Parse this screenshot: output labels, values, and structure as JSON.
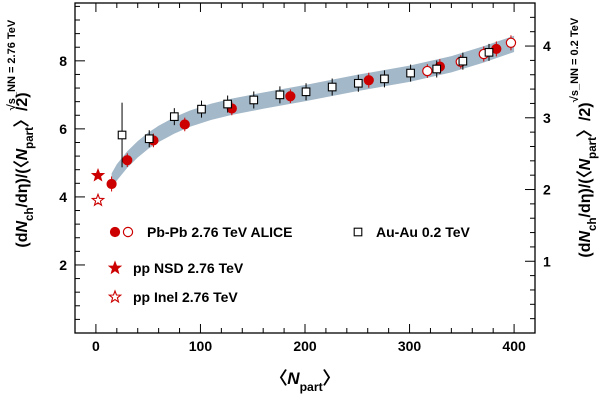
{
  "chart_data": {
    "type": "scatter",
    "xlabel_parts": [
      "〈",
      "N",
      "part",
      "〉"
    ],
    "ylabel_left_parts": [
      "(d",
      "N",
      "ch",
      "/dη)/(〈",
      "N",
      "part",
      "〉/2)"
    ],
    "ylabel_right_parts": [
      "(d",
      "N",
      "ch",
      "/dη)/(〈",
      "N",
      "part",
      "〉/2)"
    ],
    "label_right_energy": "√s_NN = 0.2 TeV",
    "label_left_energy": "√s_NN = 2.76 TeV",
    "xlim": [
      -20,
      420
    ],
    "ylim_left": [
      0,
      9.7
    ],
    "ylim_right": [
      0,
      4.6
    ],
    "x_ticks": [
      0,
      100,
      200,
      300,
      400
    ],
    "y_ticks_left": [
      2,
      4,
      6,
      8
    ],
    "y_ticks_right": [
      1,
      2,
      3,
      4
    ],
    "colors": {
      "alice": "#cc0000",
      "band": "#a3b8c8",
      "rhic": "#000000",
      "energy_label_left": "#cc0000"
    },
    "series": [
      {
        "name": "Pb-Pb 2.76 TeV ALICE",
        "marker": "filled-circle",
        "points": [
          {
            "x": 15,
            "y": 4.38,
            "e": 0.22
          },
          {
            "x": 30,
            "y": 5.08,
            "e": 0.2
          },
          {
            "x": 55,
            "y": 5.66,
            "e": 0.2
          },
          {
            "x": 85,
            "y": 6.13,
            "e": 0.2
          },
          {
            "x": 130,
            "y": 6.6,
            "e": 0.2
          },
          {
            "x": 186,
            "y": 6.96,
            "e": 0.2
          },
          {
            "x": 261,
            "y": 7.43,
            "e": 0.22
          },
          {
            "x": 329,
            "y": 7.83,
            "e": 0.22
          },
          {
            "x": 383,
            "y": 8.35,
            "e": 0.22
          }
        ]
      },
      {
        "name": "Pb-Pb 2.76 TeV ALICE (open)",
        "marker": "open-circle",
        "points": [
          {
            "x": 317,
            "y": 7.7,
            "e": 0.2
          },
          {
            "x": 349,
            "y": 7.97,
            "e": 0.2
          },
          {
            "x": 371,
            "y": 8.2,
            "e": 0.22
          },
          {
            "x": 397,
            "y": 8.53,
            "e": 0.22
          }
        ]
      },
      {
        "name": "Au-Au 0.2 TeV",
        "marker": "open-square",
        "points": [
          {
            "x": 25,
            "y": 5.82,
            "e": 0.95
          },
          {
            "x": 51,
            "y": 5.71,
            "e": 0.25
          },
          {
            "x": 75,
            "y": 6.36,
            "e": 0.25
          },
          {
            "x": 101,
            "y": 6.58,
            "e": 0.25
          },
          {
            "x": 126,
            "y": 6.73,
            "e": 0.25
          },
          {
            "x": 151,
            "y": 6.85,
            "e": 0.25
          },
          {
            "x": 176,
            "y": 7.0,
            "e": 0.25
          },
          {
            "x": 201,
            "y": 7.09,
            "e": 0.25
          },
          {
            "x": 226,
            "y": 7.23,
            "e": 0.25
          },
          {
            "x": 251,
            "y": 7.34,
            "e": 0.25
          },
          {
            "x": 276,
            "y": 7.47,
            "e": 0.25
          },
          {
            "x": 301,
            "y": 7.64,
            "e": 0.25
          },
          {
            "x": 326,
            "y": 7.76,
            "e": 0.25
          },
          {
            "x": 351,
            "y": 7.99,
            "e": 0.25
          },
          {
            "x": 376,
            "y": 8.25,
            "e": 0.25
          }
        ]
      },
      {
        "name": "pp NSD 2.76 TeV",
        "marker": "filled-star",
        "points": [
          {
            "x": 2,
            "y": 4.63
          }
        ]
      },
      {
        "name": "pp Inel 2.76 TeV",
        "marker": "open-star",
        "points": [
          {
            "x": 2,
            "y": 3.9,
            "e": 0.12
          }
        ]
      }
    ],
    "band": {
      "x": [
        15,
        20,
        30,
        40,
        50,
        60,
        75,
        90,
        110,
        130,
        160,
        200,
        250,
        300,
        340,
        370,
        400
      ],
      "y": [
        4.45,
        4.72,
        5.1,
        5.4,
        5.65,
        5.85,
        6.1,
        6.3,
        6.5,
        6.65,
        6.83,
        7.05,
        7.35,
        7.62,
        7.9,
        8.18,
        8.5
      ],
      "half_width": 0.24
    },
    "legend": [
      {
        "label": "Pb-Pb 2.76 TeV ALICE",
        "markers": [
          "filled-circle",
          "open-circle"
        ]
      },
      {
        "label": "Au-Au  0.2 TeV",
        "markers": [
          "open-square"
        ]
      },
      {
        "label": "pp NSD 2.76 TeV",
        "markers": [
          "filled-star"
        ]
      },
      {
        "label": "pp Inel 2.76 TeV",
        "markers": [
          "open-star"
        ]
      }
    ]
  }
}
